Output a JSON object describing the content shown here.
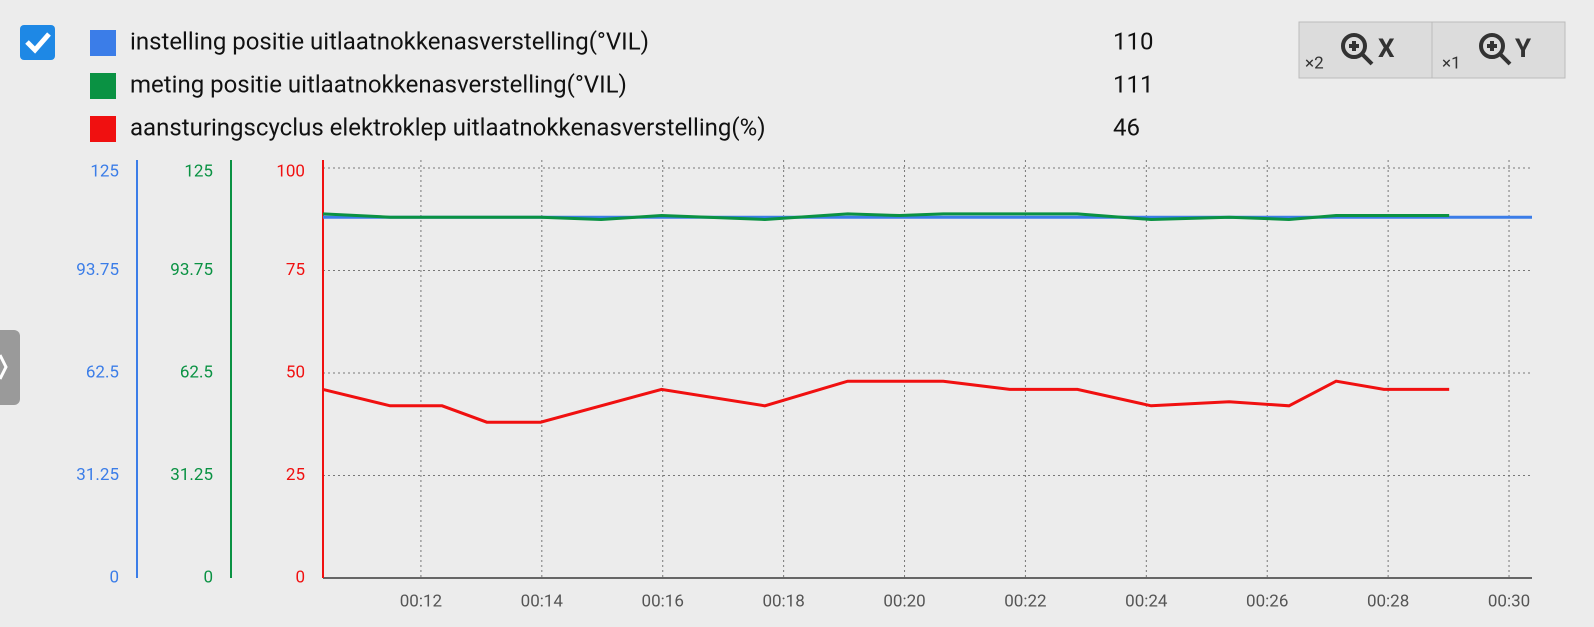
{
  "chart_data": {
    "type": "line",
    "series": [
      {
        "name": "instelling positie uitlaatnokkenasverstelling(°VIL)",
        "color": "#3b7de8",
        "current": 110,
        "x": [
          10.38,
          30.38
        ],
        "values": [
          110,
          110
        ],
        "ylim": [
          0,
          125
        ],
        "yticks": [
          0,
          31.25,
          62.5,
          93.75,
          125
        ]
      },
      {
        "name": "meting positie uitlaatnokkenasverstelling(°VIL)",
        "color": "#0a9243",
        "current": 111,
        "x": [
          10.38,
          11.49,
          13.98,
          14.98,
          15.98,
          17.69,
          19.06,
          19.92,
          20.64,
          22.86,
          24.08,
          25.37,
          26.36,
          27.14,
          29.01
        ],
        "values": [
          111,
          110,
          110,
          109.3,
          110.5,
          109.3,
          111,
          110.5,
          111,
          111,
          109.3,
          110,
          109.3,
          110.5,
          110.5
        ],
        "ylim": [
          0,
          125
        ],
        "yticks": [
          0,
          31.25,
          62.5,
          93.75,
          125
        ]
      },
      {
        "name": "aansturingscyclus elektroklep uitlaatnokkenasverstelling(%)",
        "color": "#f01010",
        "current": 46,
        "x": [
          10.38,
          11.49,
          12.35,
          13.09,
          13.98,
          15.98,
          17.69,
          19.06,
          20.64,
          21.74,
          22.86,
          24.08,
          25.37,
          26.36,
          27.14,
          27.93,
          29.01
        ],
        "values": [
          46,
          42,
          42,
          38,
          38,
          46,
          42,
          48,
          48,
          46,
          46,
          42,
          43,
          42,
          48,
          46,
          46
        ],
        "ylim": [
          0,
          100
        ],
        "yticks": [
          0,
          25,
          50,
          75,
          100
        ]
      }
    ],
    "xlim": [
      10.38,
      30.38
    ],
    "xticks": [
      {
        "value": 12,
        "label": "00:12"
      },
      {
        "value": 14,
        "label": "00:14"
      },
      {
        "value": 16,
        "label": "00:16"
      },
      {
        "value": 18,
        "label": "00:18"
      },
      {
        "value": 20,
        "label": "00:20"
      },
      {
        "value": 22,
        "label": "00:22"
      },
      {
        "value": 24,
        "label": "00:24"
      },
      {
        "value": 26,
        "label": "00:26"
      },
      {
        "value": 28,
        "label": "00:28"
      },
      {
        "value": 30,
        "label": "00:30"
      }
    ],
    "grid": true
  },
  "toolbar": [
    {
      "factor": "×2",
      "axis": "X"
    },
    {
      "factor": "×1",
      "axis": "Y"
    }
  ]
}
